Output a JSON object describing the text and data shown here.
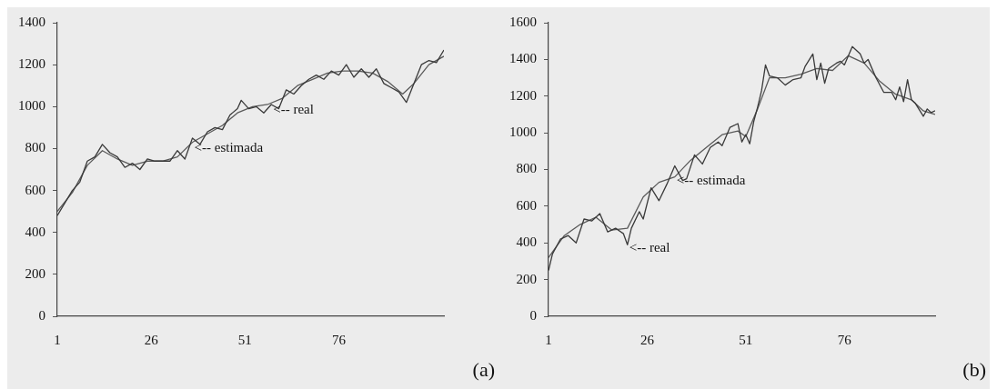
{
  "chart_data": [
    {
      "type": "line",
      "annotations": [
        {
          "text": "<-- real",
          "x": 58,
          "y": 1000
        },
        {
          "text": "<-- estimada",
          "x": 37,
          "y": 820
        },
        "(a)"
      ],
      "xlim": [
        1,
        104
      ],
      "xticks": [
        1,
        26,
        51,
        76
      ],
      "ylim": [
        0,
        1400
      ],
      "yticks": [
        0,
        200,
        400,
        600,
        800,
        1000,
        1200,
        1400
      ],
      "grid": false,
      "legend": false,
      "marker": "none",
      "line_style": "solid",
      "series": [
        {
          "color": "#3a3a3a",
          "x": [
            1,
            3,
            5,
            7,
            9,
            11,
            13,
            15,
            17,
            19,
            21,
            23,
            25,
            27,
            29,
            31,
            33,
            35,
            37,
            39,
            41,
            43,
            45,
            47,
            49,
            50,
            52,
            54,
            56,
            58,
            60,
            62,
            64,
            66,
            68,
            70,
            72,
            74,
            76,
            78,
            80,
            82,
            84,
            86,
            88,
            90,
            92,
            94,
            96,
            98,
            100,
            102,
            104
          ],
          "values": [
            480,
            540,
            600,
            640,
            740,
            760,
            820,
            780,
            760,
            710,
            730,
            700,
            750,
            740,
            740,
            740,
            790,
            750,
            850,
            820,
            880,
            900,
            890,
            960,
            990,
            1030,
            990,
            1000,
            970,
            1010,
            990,
            1080,
            1060,
            1100,
            1130,
            1150,
            1130,
            1170,
            1150,
            1200,
            1140,
            1180,
            1140,
            1180,
            1110,
            1090,
            1070,
            1020,
            1110,
            1200,
            1220,
            1210,
            1270
          ]
        },
        {
          "color": "#5a5a5a",
          "x": [
            1,
            5,
            9,
            13,
            17,
            21,
            25,
            29,
            33,
            37,
            41,
            45,
            49,
            53,
            57,
            61,
            65,
            69,
            73,
            77,
            81,
            85,
            89,
            93,
            96,
            100,
            104
          ],
          "values": [
            500,
            590,
            720,
            790,
            750,
            720,
            740,
            740,
            760,
            830,
            870,
            910,
            970,
            1000,
            1010,
            1040,
            1100,
            1130,
            1160,
            1170,
            1170,
            1160,
            1120,
            1060,
            1110,
            1200,
            1240
          ]
        }
      ]
    },
    {
      "type": "line",
      "annotations": [
        {
          "text": "<-- estimada",
          "x": 33,
          "y": 760
        },
        {
          "text": "<-- real",
          "x": 21,
          "y": 390
        },
        "(b)"
      ],
      "xlim": [
        1,
        99
      ],
      "xticks": [
        1,
        26,
        51,
        76
      ],
      "ylim": [
        0,
        1600
      ],
      "yticks": [
        0,
        200,
        400,
        600,
        800,
        1000,
        1200,
        1400,
        1600
      ],
      "grid": false,
      "legend": false,
      "marker": "none",
      "line_style": "solid",
      "series": [
        {
          "color": "#3a3a3a",
          "x": [
            1,
            2,
            4,
            6,
            8,
            10,
            12,
            14,
            16,
            18,
            20,
            21,
            22,
            24,
            25,
            27,
            29,
            31,
            33,
            35,
            36,
            38,
            40,
            42,
            44,
            45,
            46,
            47,
            49,
            50,
            51,
            52,
            53,
            54,
            55,
            56,
            57,
            59,
            61,
            63,
            65,
            66,
            68,
            69,
            70,
            71,
            72,
            74,
            75,
            76,
            78,
            80,
            81,
            82,
            84,
            86,
            88,
            89,
            90,
            91,
            92,
            93,
            94,
            96,
            97,
            98,
            99
          ],
          "values": [
            250,
            340,
            420,
            440,
            400,
            530,
            520,
            560,
            460,
            480,
            450,
            390,
            480,
            570,
            530,
            700,
            630,
            720,
            820,
            740,
            750,
            880,
            830,
            920,
            950,
            930,
            980,
            1030,
            1050,
            950,
            990,
            940,
            1060,
            1140,
            1230,
            1370,
            1310,
            1300,
            1260,
            1290,
            1300,
            1360,
            1430,
            1290,
            1380,
            1270,
            1350,
            1380,
            1390,
            1370,
            1470,
            1430,
            1380,
            1400,
            1300,
            1220,
            1220,
            1180,
            1250,
            1170,
            1290,
            1180,
            1160,
            1090,
            1130,
            1110,
            1120
          ]
        },
        {
          "color": "#5a5a5a",
          "x": [
            1,
            5,
            9,
            13,
            17,
            21,
            25,
            29,
            33,
            37,
            41,
            45,
            49,
            51,
            54,
            57,
            61,
            65,
            69,
            73,
            77,
            81,
            85,
            89,
            93,
            96,
            99
          ],
          "values": [
            320,
            440,
            500,
            540,
            470,
            480,
            650,
            730,
            760,
            850,
            920,
            990,
            1010,
            980,
            1130,
            1300,
            1300,
            1320,
            1350,
            1340,
            1420,
            1380,
            1280,
            1210,
            1180,
            1120,
            1100
          ]
        }
      ]
    }
  ]
}
